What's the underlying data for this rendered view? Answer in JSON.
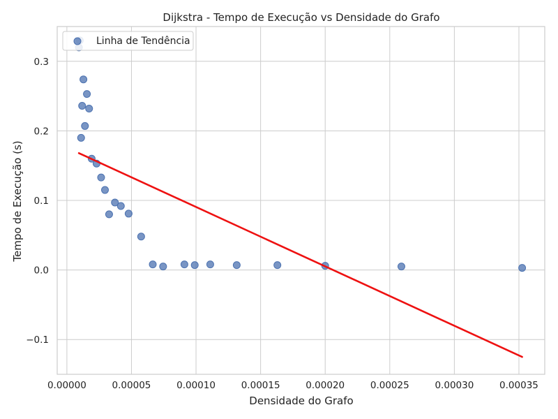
{
  "chart_data": {
    "type": "scatter",
    "title": "Dijkstra - Tempo de Execução vs Densidade do Grafo",
    "xlabel": "Densidade do Grafo",
    "ylabel": "Tempo de Execução (s)",
    "xlim": [
      -7.5e-06,
      0.00037
    ],
    "ylim": [
      -0.15,
      0.35
    ],
    "x_ticks": [
      0,
      5e-05,
      0.0001,
      0.00015,
      0.0002,
      0.00025,
      0.0003,
      0.00035
    ],
    "x_tick_labels": [
      "0.00000",
      "0.00005",
      "0.00010",
      "0.00015",
      "0.00020",
      "0.00025",
      "0.00030",
      "0.00035"
    ],
    "y_ticks": [
      -0.1,
      0.0,
      0.1,
      0.2,
      0.3
    ],
    "y_tick_labels": [
      "−0.1",
      "0.0",
      "0.1",
      "0.2",
      "0.3"
    ],
    "grid": true,
    "legend": {
      "position": "top-left",
      "entries": [
        "Linha de Tendência"
      ]
    },
    "series": [
      {
        "kind": "points",
        "color": "#4c72b0",
        "x": [
          9.3e-06,
          1e-05,
          1.1e-05,
          1.18e-05,
          1.28e-05,
          1.4e-05,
          1.55e-05,
          1.72e-05,
          1.92e-05,
          2.3e-05,
          2.65e-05,
          2.95e-05,
          3.27e-05,
          3.72e-05,
          4.18e-05,
          4.78e-05,
          5.75e-05,
          6.65e-05,
          7.45e-05,
          9.1e-05,
          9.9e-05,
          0.000111,
          0.0001315,
          0.000163,
          0.0002,
          0.000259,
          0.0003525
        ],
        "y": [
          0.32,
          0.33,
          0.19,
          0.236,
          0.274,
          0.207,
          0.253,
          0.232,
          0.16,
          0.153,
          0.133,
          0.115,
          0.08,
          0.097,
          0.092,
          0.081,
          0.048,
          0.008,
          0.005,
          0.008,
          0.007,
          0.008,
          0.007,
          0.007,
          0.006,
          0.005,
          0.003
        ]
      },
      {
        "name": "Linha de Tendência",
        "kind": "line",
        "color": "#ee1111",
        "x": [
          9.3e-06,
          0.0003525
        ],
        "y": [
          0.168,
          -0.125
        ]
      }
    ]
  }
}
